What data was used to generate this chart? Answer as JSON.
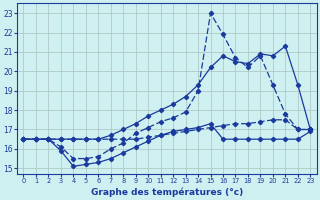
{
  "title": "Graphe des températures (°c)",
  "background_color": "#cff0f0",
  "grid_color": "#b0c8c8",
  "line_color": "#1a3a9e",
  "xlim": [
    -0.5,
    23.5
  ],
  "ylim": [
    14.7,
    23.5
  ],
  "xticks": [
    0,
    1,
    2,
    3,
    4,
    5,
    6,
    7,
    8,
    9,
    10,
    11,
    12,
    13,
    14,
    15,
    16,
    17,
    18,
    19,
    20,
    21,
    22,
    23
  ],
  "yticks": [
    15,
    16,
    17,
    18,
    19,
    20,
    21,
    22,
    23
  ],
  "line_horiz_x": [
    0,
    1,
    2,
    3,
    4,
    5,
    6,
    7,
    8,
    9,
    10,
    11,
    12,
    13,
    14,
    15,
    16,
    17,
    18,
    19,
    20,
    21,
    22,
    23
  ],
  "line_horiz_y": [
    16.5,
    16.5,
    16.5,
    16.5,
    16.5,
    16.5,
    16.5,
    16.5,
    16.5,
    16.5,
    16.6,
    16.7,
    16.8,
    16.9,
    17.0,
    17.1,
    17.2,
    17.3,
    17.3,
    17.4,
    17.5,
    17.5,
    17.0,
    17.0
  ],
  "line_dip_x": [
    0,
    1,
    2,
    3,
    4,
    5,
    6,
    7,
    8,
    9,
    10,
    11,
    12,
    13,
    14,
    15,
    16,
    17,
    18,
    19,
    20,
    21,
    22,
    23
  ],
  "line_dip_y": [
    16.5,
    16.5,
    16.5,
    15.9,
    15.1,
    15.2,
    15.3,
    15.5,
    15.8,
    16.1,
    16.4,
    16.7,
    16.9,
    17.0,
    17.1,
    17.3,
    16.5,
    16.5,
    16.5,
    16.5,
    16.5,
    16.5,
    16.5,
    16.9
  ],
  "line_spike_x": [
    0,
    1,
    2,
    3,
    4,
    5,
    6,
    7,
    8,
    9,
    10,
    11,
    12,
    13,
    14,
    15,
    16,
    17,
    18,
    19,
    20,
    21,
    22,
    23
  ],
  "line_spike_y": [
    16.5,
    16.5,
    16.5,
    16.1,
    15.5,
    15.5,
    15.6,
    16.0,
    16.3,
    16.8,
    17.1,
    17.4,
    17.6,
    17.9,
    19.0,
    23.0,
    21.9,
    20.7,
    20.2,
    20.8,
    19.3,
    17.8,
    17.0,
    17.0
  ],
  "line_smooth_x": [
    0,
    1,
    2,
    3,
    4,
    5,
    6,
    7,
    8,
    9,
    10,
    11,
    12,
    13,
    14,
    15,
    16,
    17,
    18,
    19,
    20,
    21,
    22,
    23
  ],
  "line_smooth_y": [
    16.5,
    16.5,
    16.5,
    16.5,
    16.5,
    16.5,
    16.5,
    16.7,
    17.0,
    17.3,
    17.7,
    18.0,
    18.3,
    18.7,
    19.3,
    20.2,
    20.8,
    20.5,
    20.4,
    20.9,
    20.8,
    21.3,
    19.3,
    17.0
  ]
}
